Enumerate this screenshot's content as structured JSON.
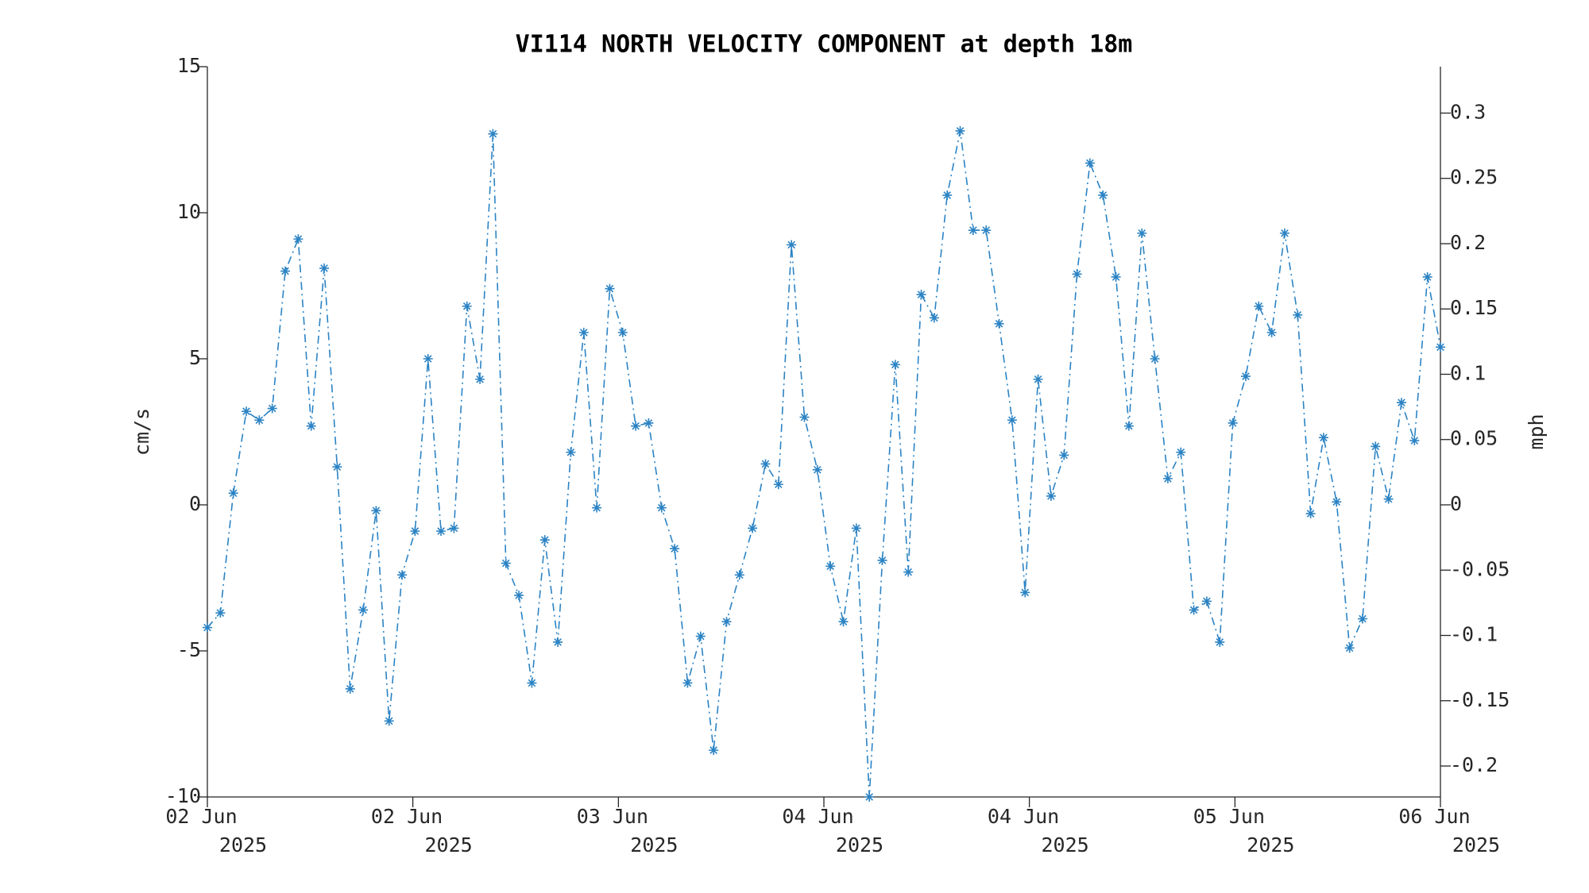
{
  "chart_data": {
    "type": "line",
    "title": "VI114 NORTH VELOCITY COMPONENT at depth 18m",
    "y_label": "cm/s",
    "y2_label": "mph",
    "x": [
      0,
      1,
      2,
      3,
      4,
      5,
      6,
      7,
      8,
      9,
      10,
      11,
      12,
      13,
      14,
      15,
      16,
      17,
      18,
      19,
      20,
      21,
      22,
      23,
      24,
      25,
      26,
      27,
      28,
      29,
      30,
      31,
      32,
      33,
      34,
      35,
      36,
      37,
      38,
      39,
      40,
      41,
      42,
      43,
      44,
      45,
      46,
      47,
      48,
      49,
      50,
      51,
      52,
      53,
      54,
      55,
      56,
      57,
      58,
      59,
      60,
      61,
      62,
      63,
      64,
      65,
      66,
      67,
      68,
      69,
      70,
      71,
      72,
      73,
      74,
      75,
      76,
      77,
      78,
      79,
      80,
      81,
      82,
      83,
      84,
      85,
      86,
      87,
      88,
      89,
      90,
      91,
      92,
      93,
      94,
      95
    ],
    "series": [
      {
        "name": "North velocity",
        "color": "#2b83c4",
        "values": [
          -4.2,
          -3.7,
          0.4,
          3.2,
          2.9,
          3.3,
          8.0,
          9.1,
          2.7,
          8.1,
          1.3,
          -6.3,
          -3.6,
          -0.2,
          -7.4,
          -2.4,
          -0.9,
          5.0,
          -0.9,
          -0.8,
          6.8,
          4.3,
          12.7,
          -2.0,
          -3.1,
          -6.1,
          -1.2,
          -4.7,
          1.8,
          5.9,
          -0.1,
          7.4,
          5.9,
          2.7,
          2.8,
          -0.1,
          -1.5,
          -6.1,
          -4.5,
          -8.4,
          -4.0,
          -2.4,
          -0.8,
          1.4,
          0.7,
          8.9,
          3.0,
          1.2,
          -2.1,
          -4.0,
          -0.8,
          -10.0,
          -1.9,
          4.8,
          -2.3,
          7.2,
          6.4,
          10.6,
          12.8,
          9.4,
          9.4,
          6.2,
          2.9,
          -3.0,
          4.3,
          0.3,
          1.7,
          7.9,
          11.7,
          10.6,
          7.8,
          2.7,
          9.3,
          5.0,
          0.9,
          1.8,
          -3.6,
          -3.3,
          -4.7,
          2.8,
          4.4,
          6.8,
          5.9,
          9.3,
          6.5,
          -0.3,
          2.3,
          0.1,
          -4.9,
          -3.9,
          2.0,
          0.2,
          3.5,
          2.2,
          7.8,
          5.4
        ]
      }
    ],
    "xlim": [
      0,
      95
    ],
    "xticks": [
      {
        "value": 0,
        "label": "02 Jun 2025"
      },
      {
        "value": 15.83,
        "label": "02 Jun 2025"
      },
      {
        "value": 31.67,
        "label": "03 Jun 2025"
      },
      {
        "value": 47.5,
        "label": "04 Jun 2025"
      },
      {
        "value": 63.33,
        "label": "04 Jun 2025"
      },
      {
        "value": 79.17,
        "label": "05 Jun 2025"
      },
      {
        "value": 95,
        "label": "06 Jun 2025"
      }
    ],
    "ylim": [
      -10,
      15
    ],
    "yticks": [
      -10,
      -5,
      0,
      5,
      10,
      15
    ],
    "y2lim": [
      -0.22369,
      0.33554
    ],
    "y2ticks": [
      -0.2,
      -0.15,
      -0.1,
      -0.05,
      0,
      0.05,
      0.1,
      0.15,
      0.2,
      0.25,
      0.3
    ],
    "grid": false
  }
}
